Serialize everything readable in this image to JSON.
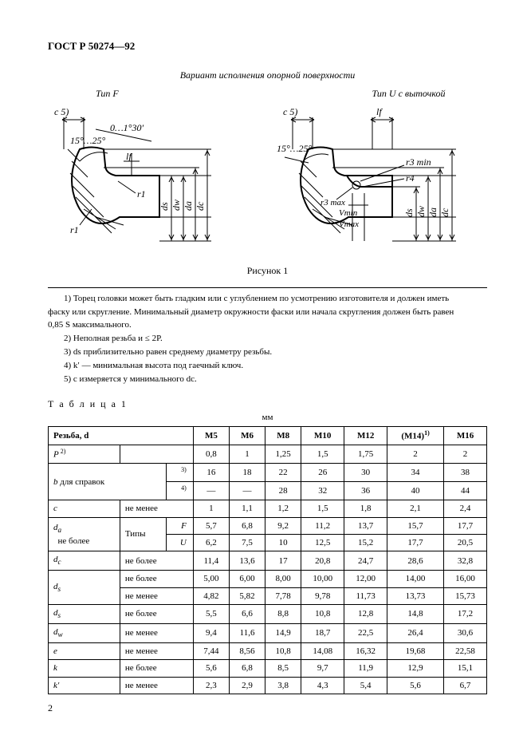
{
  "doc_id": "ГОСТ Р 50274—92",
  "section_title": "Вариант исполнения опорной поверхности",
  "fig_left_title": "Тип F",
  "fig_right_title": "Тип U с выточкой",
  "fig_label": "Рисунок 1",
  "diagram_left": {
    "labels": [
      "c 5)",
      "0…1°30′",
      "15°…25°",
      "lf",
      "r1",
      "r1",
      "ds",
      "dw",
      "da",
      "dc"
    ]
  },
  "diagram_right": {
    "labels": [
      "c 5)",
      "lf",
      "15°…25°",
      "r3 min",
      "r4",
      "r3 max",
      "Vmin",
      "Vmax",
      "ds",
      "dw",
      "da",
      "dc"
    ]
  },
  "notes": {
    "n1a": "1) Торец головки может быть гладким или с углублением по усмотрению изготовителя и должен иметь",
    "n1b": "фаску или скругление. Минимальный диаметр окружности фаски или начала скругления должен быть равен",
    "n1c": "0,85 S максимального.",
    "n2": "2) Неполная резьба и ≤ 2P.",
    "n3": "3) ds приблизительно равен среднему диаметру резьбы.",
    "n4": "4) k′ — минимальная высота под гаечный ключ.",
    "n5": "5) c измеряется у минимального dc."
  },
  "table_title": "Т а б л и ц а   1",
  "unit": "мм",
  "table": {
    "header_thread": "Резьба,  d",
    "columns": [
      "M5",
      "M6",
      "M8",
      "M10",
      "M12",
      "(M14)",
      "M16"
    ],
    "m14_note": "1)",
    "rows": [
      {
        "label_html": "<span class='sym'>P</span><span class='sup'> 2)</span>",
        "cond": "",
        "vals": [
          "0,8",
          "1",
          "1,25",
          "1,5",
          "1,75",
          "2",
          "2"
        ]
      },
      {
        "label_html": "<span class='sym'>b</span> для справок",
        "sub_top": "3)",
        "sub_bot": "4)",
        "vals_top": [
          "16",
          "18",
          "22",
          "26",
          "30",
          "34",
          "38"
        ],
        "vals_bot": [
          "—",
          "—",
          "28",
          "32",
          "36",
          "40",
          "44"
        ]
      },
      {
        "label_html": "<span class='sym'>c</span>",
        "cond": "не менее",
        "vals": [
          "1",
          "1,1",
          "1,2",
          "1,5",
          "1,8",
          "2,1",
          "2,4"
        ]
      },
      {
        "label_html": "<span class='sym'>d<sub>a</sub></span><br>&nbsp;&nbsp;не более",
        "type_row": true,
        "vals_F": [
          "5,7",
          "6,8",
          "9,2",
          "11,2",
          "13,7",
          "15,7",
          "17,7"
        ],
        "vals_U": [
          "6,2",
          "7,5",
          "10",
          "12,5",
          "15,2",
          "17,7",
          "20,5"
        ]
      },
      {
        "label_html": "<span class='sym'>d<sub>c</sub></span>",
        "cond": "не более",
        "vals": [
          "11,4",
          "13,6",
          "17",
          "20,8",
          "24,7",
          "28,6",
          "32,8"
        ]
      },
      {
        "label_html": "<span class='sym'>d<sub>s</sub></span>",
        "two": true,
        "cond_top": "не более",
        "vals_top": [
          "5,00",
          "6,00",
          "8,00",
          "10,00",
          "12,00",
          "14,00",
          "16,00"
        ],
        "cond_bot": "не менее",
        "vals_bot": [
          "4,82",
          "5,82",
          "7,78",
          "9,78",
          "11,73",
          "13,73",
          "15,73"
        ]
      },
      {
        "label_html": "<span class='sym'>d<sub>s</sub></span>",
        "cond": "не более",
        "vals": [
          "5,5",
          "6,6",
          "8,8",
          "10,8",
          "12,8",
          "14,8",
          "17,2"
        ]
      },
      {
        "label_html": "<span class='sym'>d<sub>w</sub></span>",
        "cond": "не менее",
        "vals": [
          "9,4",
          "11,6",
          "14,9",
          "18,7",
          "22,5",
          "26,4",
          "30,6"
        ]
      },
      {
        "label_html": "<span class='sym'>e</span>",
        "cond": "не менее",
        "vals": [
          "7,44",
          "8,56",
          "10,8",
          "14,08",
          "16,32",
          "19,68",
          "22,58"
        ]
      },
      {
        "label_html": "<span class='sym'>k</span>",
        "cond": "не более",
        "vals": [
          "5,6",
          "6,8",
          "8,5",
          "9,7",
          "11,9",
          "12,9",
          "15,1"
        ]
      },
      {
        "label_html": "<span class='sym'>k′</span>",
        "cond": "не менее",
        "vals": [
          "2,3",
          "2,9",
          "3,8",
          "4,3",
          "5,4",
          "5,6",
          "6,7"
        ]
      }
    ]
  },
  "page_number": "2",
  "style": {
    "page_bg": "#ffffff",
    "text_color": "#000000",
    "border_color": "#000000",
    "font_family": "Times New Roman",
    "base_font_size_pt": 9,
    "table_font_size_pt": 8.5,
    "svg_stroke": "#000000",
    "svg_stroke_width": 2,
    "svg_fill": "none"
  }
}
